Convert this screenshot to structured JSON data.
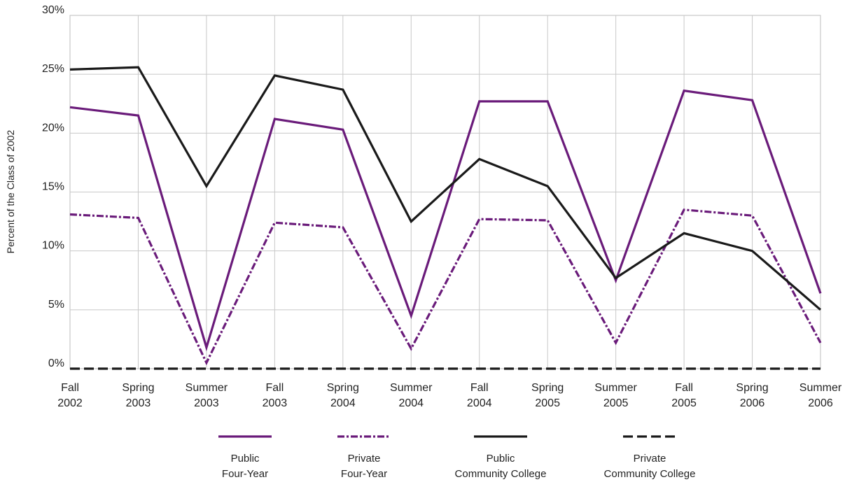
{
  "chart_data": {
    "type": "line",
    "ylabel": "Percent of the Class of 2002",
    "ylim": [
      0,
      30
    ],
    "yticks": [
      "0%",
      "5%",
      "10%",
      "15%",
      "20%",
      "25%",
      "30%"
    ],
    "categories": [
      [
        "Fall",
        "2002"
      ],
      [
        "Spring",
        "2003"
      ],
      [
        "Summer",
        "2003"
      ],
      [
        "Fall",
        "2003"
      ],
      [
        "Spring",
        "2004"
      ],
      [
        "Summer",
        "2004"
      ],
      [
        "Fall",
        "2004"
      ],
      [
        "Spring",
        "2005"
      ],
      [
        "Summer",
        "2005"
      ],
      [
        "Fall",
        "2005"
      ],
      [
        "Spring",
        "2006"
      ],
      [
        "Summer",
        "2006"
      ]
    ],
    "grid": true,
    "legend_position": "bottom",
    "series": [
      {
        "name": [
          "Public",
          "Four-Year"
        ],
        "values": [
          22.2,
          21.5,
          1.8,
          21.2,
          20.3,
          4.5,
          22.7,
          22.7,
          7.5,
          23.6,
          22.8,
          6.4
        ],
        "color": "#6a1b7a",
        "style": "solid"
      },
      {
        "name": [
          "Private",
          "Four-Year"
        ],
        "values": [
          13.1,
          12.8,
          0.5,
          12.4,
          12.0,
          1.7,
          12.7,
          12.6,
          2.2,
          13.5,
          13.0,
          2.2
        ],
        "color": "#6a1b7a",
        "style": "dashdot"
      },
      {
        "name": [
          "Public",
          "Community College"
        ],
        "values": [
          25.4,
          25.6,
          15.5,
          24.9,
          23.7,
          12.5,
          17.8,
          15.5,
          7.7,
          11.5,
          10.0,
          5.0
        ],
        "color": "#1a1a1a",
        "style": "solid"
      },
      {
        "name": [
          "Private",
          "Community College"
        ],
        "values": [
          0,
          0,
          0,
          0,
          0,
          0,
          0,
          0,
          0,
          0,
          0,
          0
        ],
        "color": "#1a1a1a",
        "style": "dashed"
      }
    ]
  }
}
